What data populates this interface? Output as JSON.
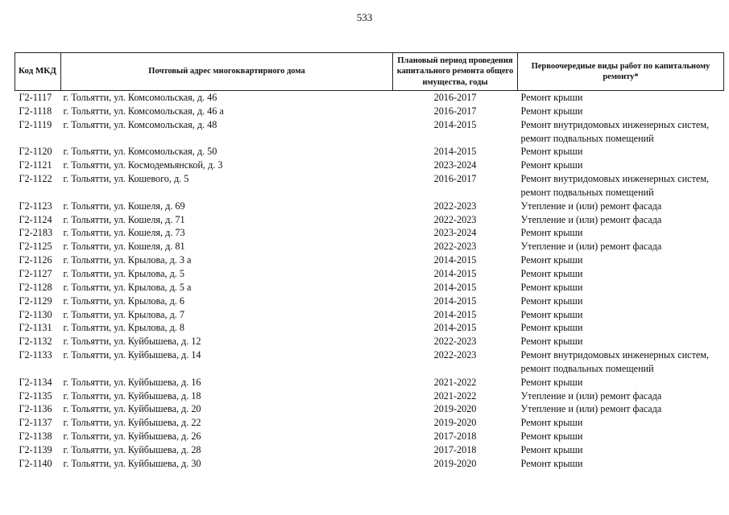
{
  "page_number": "533",
  "table": {
    "headers": [
      "Код МКД",
      "Почтовый адрес многоквартирного дома",
      "Плановый период проведения капитального ремонта общего имущества, годы",
      "Первоочередные виды работ по капитальному ремонту*"
    ],
    "rows": [
      {
        "code": "Г2-1117",
        "address": "г. Тольятти, ул. Комсомольская, д. 46",
        "period": "2016-2017",
        "work": "Ремонт крыши"
      },
      {
        "code": "Г2-1118",
        "address": "г. Тольятти, ул. Комсомольская, д. 46 а",
        "period": "2016-2017",
        "work": "Ремонт крыши"
      },
      {
        "code": "Г2-1119",
        "address": "г. Тольятти, ул. Комсомольская, д. 48",
        "period": "2014-2015",
        "work": "Ремонт внутридомовых инженерных систем, ремонт подвальных помещений"
      },
      {
        "code": "Г2-1120",
        "address": "г. Тольятти, ул. Комсомольская, д. 50",
        "period": "2014-2015",
        "work": "Ремонт крыши"
      },
      {
        "code": "Г2-1121",
        "address": "г. Тольятти, ул. Космодемьянской, д. 3",
        "period": "2023-2024",
        "work": "Ремонт крыши"
      },
      {
        "code": "Г2-1122",
        "address": "г. Тольятти, ул. Кошевого, д. 5",
        "period": "2016-2017",
        "work": "Ремонт внутридомовых инженерных систем, ремонт подвальных помещений"
      },
      {
        "code": "Г2-1123",
        "address": "г. Тольятти, ул. Кошеля, д. 69",
        "period": "2022-2023",
        "work": "Утепление и (или) ремонт фасада"
      },
      {
        "code": "Г2-1124",
        "address": "г. Тольятти, ул. Кошеля, д. 71",
        "period": "2022-2023",
        "work": "Утепление и (или) ремонт фасада"
      },
      {
        "code": "Г2-2183",
        "address": "г. Тольятти, ул. Кошеля, д. 73",
        "period": "2023-2024",
        "work": "Ремонт крыши"
      },
      {
        "code": "Г2-1125",
        "address": "г. Тольятти, ул. Кошеля, д. 81",
        "period": "2022-2023",
        "work": "Утепление и (или) ремонт фасада"
      },
      {
        "code": "Г2-1126",
        "address": "г. Тольятти, ул. Крылова, д. 3 а",
        "period": "2014-2015",
        "work": "Ремонт крыши"
      },
      {
        "code": "Г2-1127",
        "address": "г. Тольятти, ул. Крылова, д. 5",
        "period": "2014-2015",
        "work": "Ремонт крыши"
      },
      {
        "code": "Г2-1128",
        "address": "г. Тольятти, ул. Крылова, д. 5 а",
        "period": "2014-2015",
        "work": "Ремонт крыши"
      },
      {
        "code": "Г2-1129",
        "address": "г. Тольятти, ул. Крылова, д. 6",
        "period": "2014-2015",
        "work": "Ремонт крыши"
      },
      {
        "code": "Г2-1130",
        "address": "г. Тольятти, ул. Крылова, д. 7",
        "period": "2014-2015",
        "work": "Ремонт крыши"
      },
      {
        "code": "Г2-1131",
        "address": "г. Тольятти, ул. Крылова, д. 8",
        "period": "2014-2015",
        "work": "Ремонт крыши"
      },
      {
        "code": "Г2-1132",
        "address": "г. Тольятти, ул. Куйбышева, д. 12",
        "period": "2022-2023",
        "work": "Ремонт крыши"
      },
      {
        "code": "Г2-1133",
        "address": "г. Тольятти, ул. Куйбышева, д. 14",
        "period": "2022-2023",
        "work": "Ремонт внутридомовых инженерных систем, ремонт подвальных помещений"
      },
      {
        "code": "Г2-1134",
        "address": "г. Тольятти, ул. Куйбышева, д. 16",
        "period": "2021-2022",
        "work": "Ремонт крыши"
      },
      {
        "code": "Г2-1135",
        "address": "г. Тольятти, ул. Куйбышева, д. 18",
        "period": "2021-2022",
        "work": "Утепление и (или) ремонт фасада"
      },
      {
        "code": "Г2-1136",
        "address": "г. Тольятти, ул. Куйбышева, д. 20",
        "period": "2019-2020",
        "work": "Утепление и (или) ремонт фасада"
      },
      {
        "code": "Г2-1137",
        "address": "г. Тольятти, ул. Куйбышева, д. 22",
        "period": "2019-2020",
        "work": "Ремонт крыши"
      },
      {
        "code": "Г2-1138",
        "address": "г. Тольятти, ул. Куйбышева, д. 26",
        "period": "2017-2018",
        "work": "Ремонт крыши"
      },
      {
        "code": "Г2-1139",
        "address": "г. Тольятти, ул. Куйбышева, д. 28",
        "period": "2017-2018",
        "work": "Ремонт крыши"
      },
      {
        "code": "Г2-1140",
        "address": "г. Тольятти, ул. Куйбышева, д. 30",
        "period": "2019-2020",
        "work": "Ремонт крыши"
      }
    ]
  }
}
